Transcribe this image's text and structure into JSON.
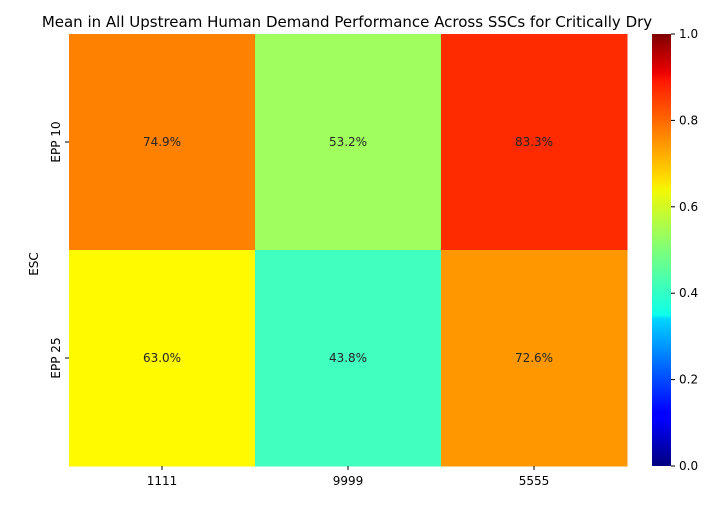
{
  "chart_data": {
    "type": "heatmap",
    "title": "Mean in All Upstream Human Demand Performance Across SSCs for Critically Dry",
    "xlabel": "",
    "ylabel": "ESC",
    "x_categories": [
      "1111",
      "9999",
      "5555"
    ],
    "y_categories": [
      "EPP 10",
      "EPP 25"
    ],
    "values": [
      [
        0.749,
        0.532,
        0.833
      ],
      [
        0.63,
        0.438,
        0.726
      ]
    ],
    "cell_labels": [
      [
        "74.9%",
        "53.2%",
        "83.3%"
      ],
      [
        "63.0%",
        "43.8%",
        "72.6%"
      ]
    ],
    "colormap": "jet",
    "vmin": 0.0,
    "vmax": 1.0,
    "colorbar_ticks": [
      "0.0",
      "0.2",
      "0.4",
      "0.6",
      "0.8",
      "1.0"
    ]
  }
}
